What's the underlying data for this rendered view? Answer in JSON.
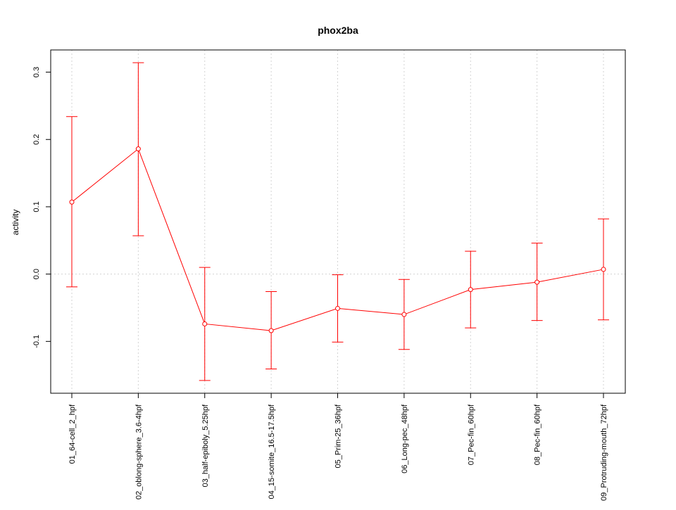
{
  "chart_data": {
    "type": "line",
    "title": "phox2ba",
    "xlabel": "",
    "ylabel": "activity",
    "categories": [
      "01_64-cell_2_hpf",
      "02_oblong-sphere_3.6-4hpf",
      "03_half-epiboly_5.25hpf",
      "04_15-somite_16.5-17.5hpf",
      "05_Prim-25_36hpf",
      "06_Long-pec_48hpf",
      "07_Pec-fin_60hpf",
      "08_Pec-fin_60hpf",
      "09_Protruding-mouth_72hpf"
    ],
    "series": [
      {
        "values": [
          0.107,
          0.186,
          -0.074,
          -0.084,
          -0.051,
          -0.06,
          -0.023,
          -0.012,
          0.007
        ],
        "err_low": [
          -0.019,
          0.057,
          -0.158,
          -0.141,
          -0.101,
          -0.112,
          -0.08,
          -0.069,
          -0.068
        ],
        "err_high": [
          0.234,
          0.314,
          0.01,
          -0.026,
          -0.001,
          -0.008,
          0.034,
          0.046,
          0.082
        ],
        "color": "#ff0000"
      }
    ],
    "ylim": [
      -0.177,
      0.333
    ],
    "yticks": [
      -0.1,
      0.0,
      0.1,
      0.2,
      0.3
    ],
    "ytick_labels": [
      "-0.1",
      "0.0",
      "0.1",
      "0.2",
      "0.3"
    ],
    "grid": true,
    "grid_color": "#d3d3d3",
    "legend": "none"
  }
}
